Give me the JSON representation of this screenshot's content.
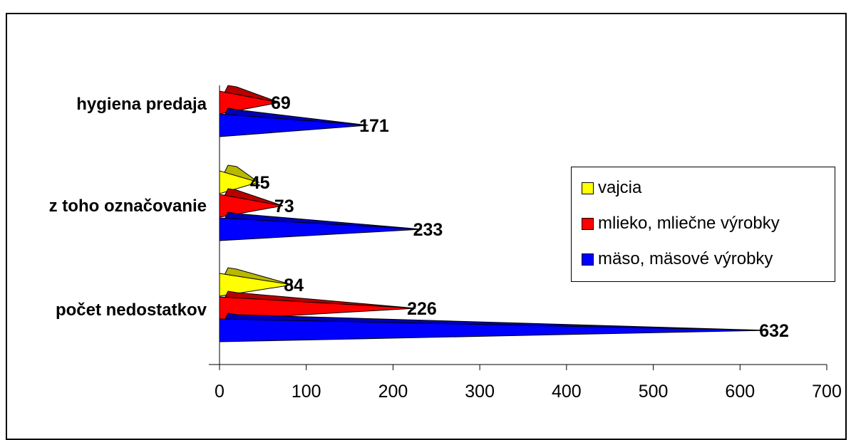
{
  "chart_data": {
    "type": "bar",
    "orientation": "horizontal",
    "title": "",
    "categories": [
      "hygiena predaja",
      "z toho označovanie",
      "počet nedostatkov"
    ],
    "series": [
      {
        "name": "vajcia",
        "color": "#ffff00",
        "values": [
          null,
          45,
          84
        ]
      },
      {
        "name": "mlieko, mliečne výrobky",
        "color": "#ff0000",
        "values": [
          69,
          73,
          226
        ]
      },
      {
        "name": "mäso, mäsové výrobky",
        "color": "#0000ff",
        "values": [
          171,
          233,
          632
        ]
      }
    ],
    "xlim": [
      0,
      700
    ],
    "xticks": [
      0,
      100,
      200,
      300,
      400,
      500,
      600,
      700
    ],
    "xlabel": "",
    "ylabel": "",
    "grid": false,
    "legend_position": "right"
  }
}
